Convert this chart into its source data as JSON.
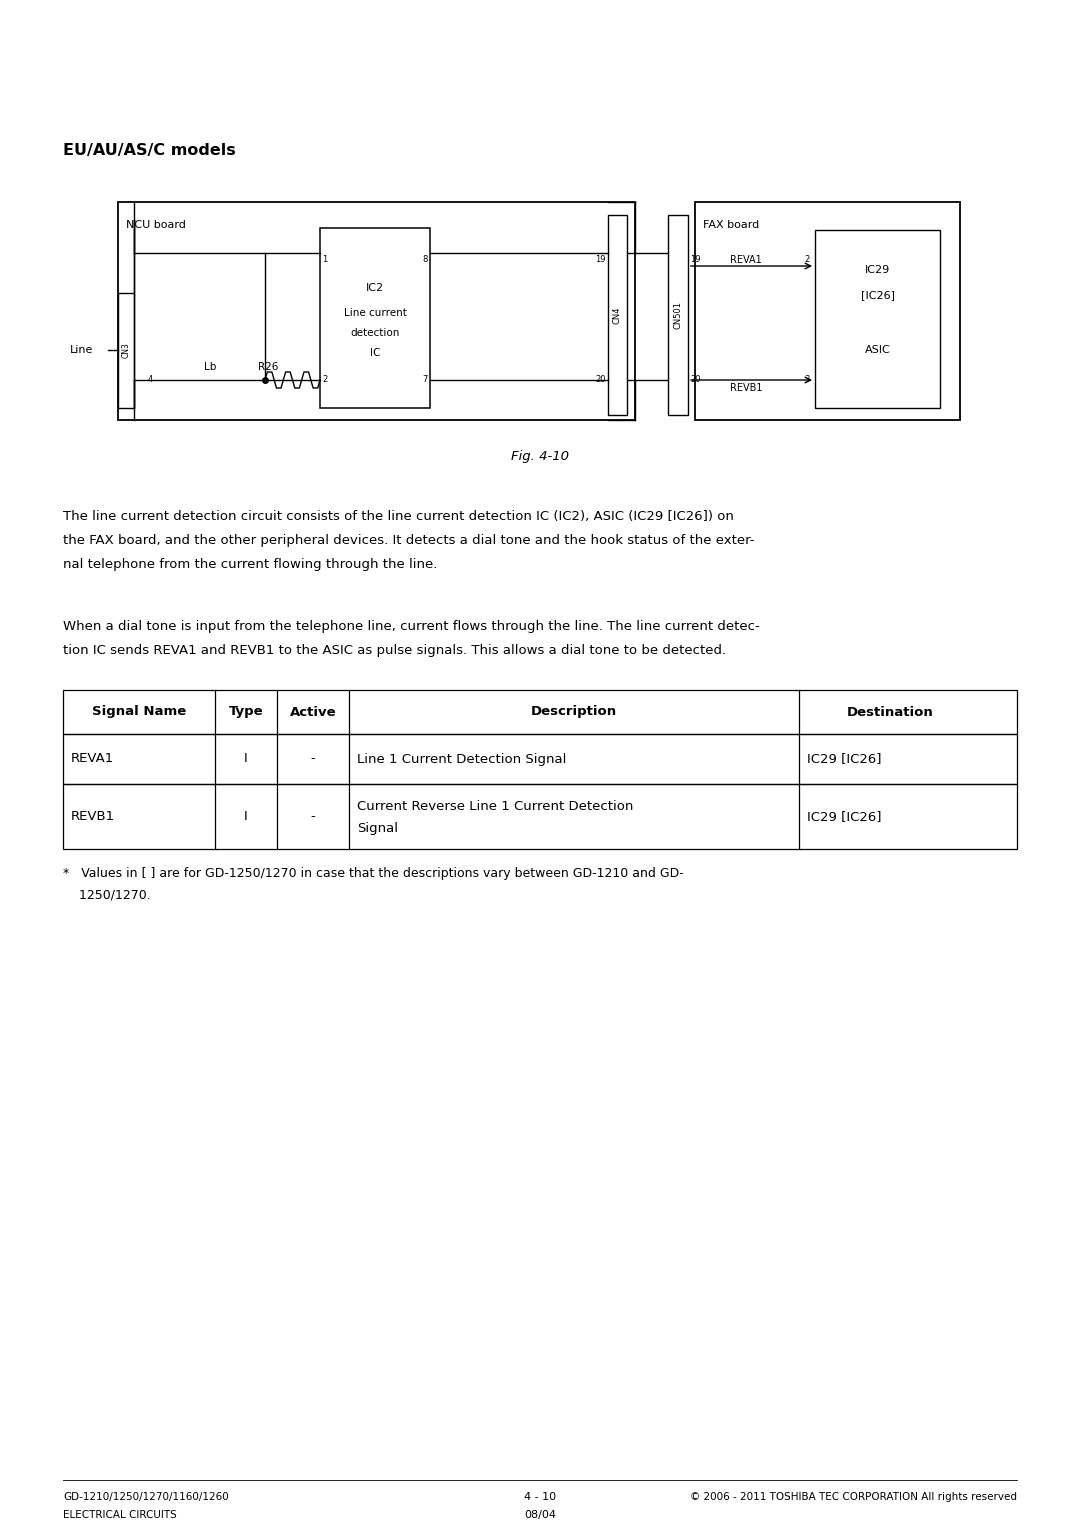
{
  "title_bold": "EU/AU/AS/C models",
  "fig_caption": "Fig. 4-10",
  "para1_lines": [
    "The line current detection circuit consists of the line current detection IC (IC2), ASIC (IC29 [IC26]) on",
    "the FAX board, and the other peripheral devices. It detects a dial tone and the hook status of the exter-",
    "nal telephone from the current flowing through the line."
  ],
  "para2_lines": [
    "When a dial tone is input from the telephone line, current flows through the line. The line current detec-",
    "tion IC sends REVA1 and REVB1 to the ASIC as pulse signals. This allows a dial tone to be detected."
  ],
  "table_headers": [
    "Signal Name",
    "Type",
    "Active",
    "Description",
    "Destination"
  ],
  "table_rows": [
    [
      "REVA1",
      "I",
      "-",
      "Line 1 Current Detection Signal",
      "IC29 [IC26]"
    ],
    [
      "REVB1",
      "I",
      "-",
      "Current Reverse Line 1 Current Detection\nSignal",
      "IC29 [IC26]"
    ]
  ],
  "footnote_lines": [
    "*   Values in [ ] are for GD-1250/1270 in case that the descriptions vary between GD-1210 and GD-",
    "    1250/1270."
  ],
  "footer_left1": "GD-1210/1250/1270/1160/1260",
  "footer_left2": "ELECTRICAL CIRCUITS",
  "footer_center1": "4 - 10",
  "footer_center2": "08/04",
  "footer_right": "© 2006 - 2011 TOSHIBA TEC CORPORATION All rights reserved",
  "bg_color": "#ffffff",
  "text_color": "#000000",
  "line_color": "#000000"
}
